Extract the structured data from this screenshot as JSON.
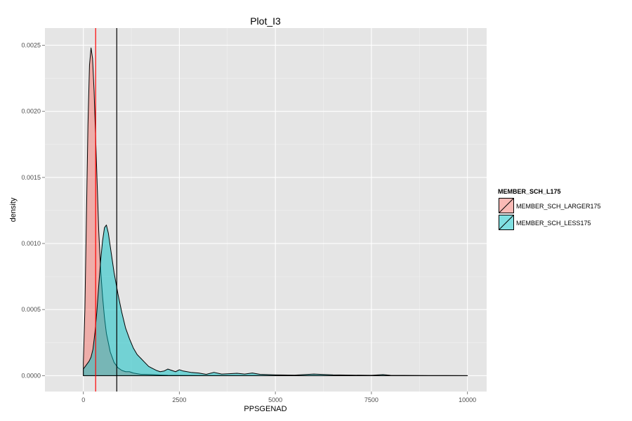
{
  "chart_data": {
    "type": "area",
    "title": "Plot_I3",
    "xlabel": "PPSGENAD",
    "ylabel": "density",
    "xlim": [
      -1000,
      10500
    ],
    "ylim": [
      -0.00012,
      0.00263
    ],
    "x_ticks": [
      0,
      2500,
      5000,
      7500,
      10000
    ],
    "x_tick_labels": [
      "0",
      "2500",
      "5000",
      "7500",
      "10000"
    ],
    "y_ticks": [
      0,
      0.0005,
      0.001,
      0.0015,
      0.002,
      0.0025
    ],
    "y_tick_labels": [
      "0.0000",
      "0.0005",
      "0.0010",
      "0.0015",
      "0.0020",
      "0.0025"
    ],
    "grid": true,
    "legend_placement": "right",
    "legend_title": "MEMBER_SCH_L175",
    "vlines": [
      {
        "x": 320,
        "color": "#ff0000"
      },
      {
        "x": 870,
        "color": "#000000"
      }
    ],
    "series": [
      {
        "name": "MEMBER_SCH_LARGER175",
        "color": "#f8766d",
        "x": [
          0,
          40,
          80,
          120,
          160,
          200,
          240,
          280,
          320,
          360,
          400,
          450,
          500,
          550,
          600,
          700,
          800,
          900,
          1000,
          1100,
          1200,
          1300,
          1400,
          1500,
          1600,
          1800,
          2000,
          2200,
          2500,
          3000,
          4000,
          5000,
          6000,
          7000,
          8000,
          9000,
          10000
        ],
        "y": [
          0.0001,
          0.0005,
          0.0012,
          0.0019,
          0.00235,
          0.00248,
          0.0024,
          0.00215,
          0.0018,
          0.00145,
          0.0011,
          0.0008,
          0.0006,
          0.00044,
          0.00032,
          0.00018,
          0.0001,
          6e-05,
          4e-05,
          3e-05,
          3e-05,
          2e-05,
          1.5e-05,
          1e-05,
          1e-05,
          8e-06,
          5e-06,
          3e-06,
          2e-06,
          1e-06,
          0,
          0,
          0,
          0,
          0,
          0,
          0
        ]
      },
      {
        "name": "MEMBER_SCH_LESS175",
        "color": "#00bfc4",
        "x": [
          0,
          50,
          100,
          150,
          200,
          250,
          300,
          350,
          400,
          450,
          500,
          550,
          600,
          650,
          700,
          750,
          800,
          900,
          1000,
          1100,
          1200,
          1300,
          1400,
          1500,
          1600,
          1700,
          1800,
          1900,
          2000,
          2100,
          2200,
          2300,
          2400,
          2500,
          2600,
          2800,
          3000,
          3200,
          3400,
          3600,
          3800,
          4000,
          4200,
          4400,
          4600,
          5000,
          5500,
          6000,
          6500,
          7000,
          7500,
          7800,
          8000,
          9000,
          10000
        ],
        "y": [
          5e-05,
          7e-05,
          9e-05,
          0.00011,
          0.00014,
          0.0002,
          0.00032,
          0.00048,
          0.00068,
          0.00087,
          0.00102,
          0.00112,
          0.00114,
          0.00108,
          0.00098,
          0.00088,
          0.00078,
          0.00062,
          0.00048,
          0.00036,
          0.00028,
          0.00021,
          0.00016,
          0.00013,
          0.0001,
          7e-05,
          5.5e-05,
          4e-05,
          3e-05,
          3.5e-05,
          5e-05,
          4e-05,
          3e-05,
          4.5e-05,
          3.5e-05,
          2.5e-05,
          2e-05,
          1e-05,
          2.5e-05,
          1.2e-05,
          1.5e-05,
          1.8e-05,
          1.2e-05,
          2e-05,
          1e-05,
          6e-06,
          4e-06,
          1.2e-05,
          6e-06,
          4e-06,
          3e-06,
          8e-06,
          3e-06,
          1e-06,
          0
        ]
      }
    ]
  }
}
